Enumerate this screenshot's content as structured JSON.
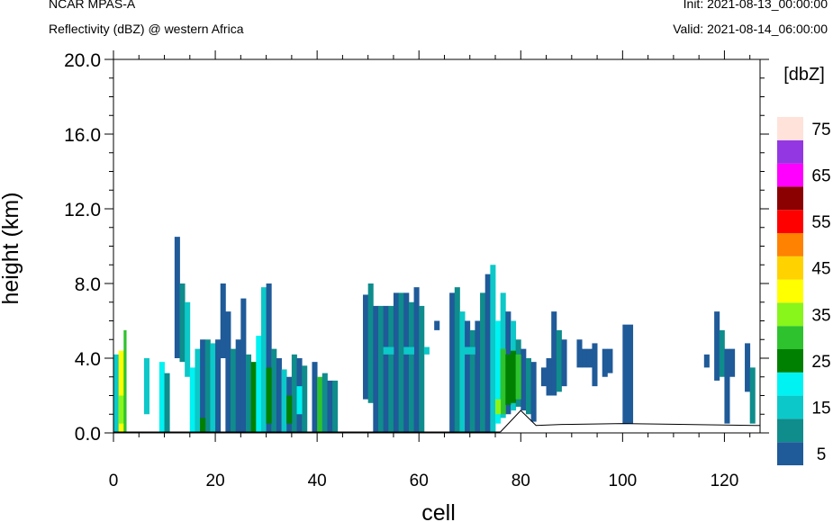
{
  "header": {
    "model": "NCAR MPAS-A",
    "field": "Reflectivity (dBZ) @ western Africa",
    "init": "Init: 2021-08-13_00:00:00",
    "valid": "Valid: 2021-08-14_06:00:00"
  },
  "chart_data": {
    "type": "heatmap",
    "title": "Reflectivity (dBZ) @ western Africa",
    "xlabel": "cell",
    "ylabel": "height (km)",
    "xlim": [
      0,
      127
    ],
    "ylim": [
      0,
      20
    ],
    "x_ticks": [
      "0",
      "20",
      "40",
      "60",
      "80",
      "100",
      "120"
    ],
    "y_ticks": [
      "0.0",
      "4.0",
      "8.0",
      "12.0",
      "16.0",
      "20.0"
    ],
    "colorbar": {
      "title": "[dbZ]",
      "labels": [
        "5",
        "15",
        "25",
        "35",
        "45",
        "55",
        "65",
        "75"
      ],
      "levels": [
        5,
        10,
        15,
        20,
        25,
        30,
        35,
        40,
        45,
        50,
        55,
        60,
        65,
        70,
        75
      ],
      "colors": [
        "#1f5a99",
        "#0f8c8c",
        "#0cc8c8",
        "#00f2f2",
        "#008000",
        "#2ec22e",
        "#88f51b",
        "#ffff00",
        "#ffd200",
        "#ff8200",
        "#ff0000",
        "#8b0000",
        "#ff00ff",
        "#9337e2",
        "#ffe2d9"
      ]
    },
    "columns": [
      {
        "x0": 0,
        "x1": 1,
        "bot": 0,
        "top": 4.2,
        "color": "#0cc8c8"
      },
      {
        "x0": 1,
        "x1": 2,
        "bot": 0,
        "top": 4.4,
        "color": "#ffff00"
      },
      {
        "x0": 1,
        "x1": 2,
        "bot": 0.5,
        "top": 2.0,
        "color": "#88f51b"
      },
      {
        "x0": 2,
        "x1": 2.5,
        "bot": 0,
        "top": 5.5,
        "color": "#2ec22e"
      },
      {
        "x0": 6,
        "x1": 7,
        "bot": 1.0,
        "top": 4.0,
        "color": "#0cc8c8"
      },
      {
        "x0": 9,
        "x1": 10,
        "bot": 0,
        "top": 3.8,
        "color": "#00f2f2"
      },
      {
        "x0": 10,
        "x1": 11,
        "bot": 0,
        "top": 3.2,
        "color": "#0f8c8c"
      },
      {
        "x0": 12,
        "x1": 13,
        "bot": 4.0,
        "top": 10.5,
        "color": "#1f5a99"
      },
      {
        "x0": 13,
        "x1": 14,
        "bot": 3.8,
        "top": 8.0,
        "color": "#0f8c8c"
      },
      {
        "x0": 14,
        "x1": 15,
        "bot": 3.0,
        "top": 7.0,
        "color": "#0cc8c8"
      },
      {
        "x0": 15,
        "x1": 16,
        "bot": 0,
        "top": 3.5,
        "color": "#00f2f2"
      },
      {
        "x0": 16,
        "x1": 17,
        "bot": 0,
        "top": 4.5,
        "color": "#0cc8c8"
      },
      {
        "x0": 17,
        "x1": 18,
        "bot": 0,
        "top": 5.0,
        "color": "#1f5a99"
      },
      {
        "x0": 18,
        "x1": 19,
        "bot": 0,
        "top": 5.0,
        "color": "#0f8c8c"
      },
      {
        "x0": 19,
        "x1": 20,
        "bot": 0,
        "top": 4.8,
        "color": "#0cc8c8"
      },
      {
        "x0": 20,
        "x1": 21,
        "bot": 0,
        "top": 5.0,
        "color": "#1f5a99"
      },
      {
        "x0": 21,
        "x1": 22,
        "bot": 4.0,
        "top": 8.0,
        "color": "#1f5a99"
      },
      {
        "x0": 22,
        "x1": 23,
        "bot": 0,
        "top": 6.5,
        "color": "#1f5a99"
      },
      {
        "x0": 23,
        "x1": 24,
        "bot": 0,
        "top": 4.5,
        "color": "#0f8c8c"
      },
      {
        "x0": 24,
        "x1": 25,
        "bot": 0,
        "top": 5.0,
        "color": "#1f5a99"
      },
      {
        "x0": 25,
        "x1": 26,
        "bot": 0,
        "top": 7.2,
        "color": "#1f5a99"
      },
      {
        "x0": 26,
        "x1": 27,
        "bot": 0,
        "top": 4.2,
        "color": "#0f8c8c"
      },
      {
        "x0": 27,
        "x1": 28,
        "bot": 0,
        "top": 3.8,
        "color": "#008000"
      },
      {
        "x0": 28,
        "x1": 29,
        "bot": 0,
        "top": 5.2,
        "color": "#00f2f2"
      },
      {
        "x0": 29,
        "x1": 30,
        "bot": 0,
        "top": 7.8,
        "color": "#0cc8c8"
      },
      {
        "x0": 30,
        "x1": 31,
        "bot": 0,
        "top": 8.0,
        "color": "#1f5a99"
      },
      {
        "x0": 31,
        "x1": 32,
        "bot": 0,
        "top": 4.5,
        "color": "#0f8c8c"
      },
      {
        "x0": 32,
        "x1": 33,
        "bot": 0,
        "top": 4.0,
        "color": "#1f5a99"
      },
      {
        "x0": 33,
        "x1": 34,
        "bot": 0,
        "top": 3.4,
        "color": "#0cc8c8"
      },
      {
        "x0": 34,
        "x1": 35,
        "bot": 0,
        "top": 3.0,
        "color": "#1f5a99"
      },
      {
        "x0": 35,
        "x1": 36,
        "bot": 0,
        "top": 4.2,
        "color": "#0f8c8c"
      },
      {
        "x0": 36,
        "x1": 37,
        "bot": 0,
        "top": 4.0,
        "color": "#1f5a99"
      },
      {
        "x0": 37,
        "x1": 38,
        "bot": 0,
        "top": 3.6,
        "color": "#0f8c8c"
      },
      {
        "x0": 39,
        "x1": 40,
        "bot": 0,
        "top": 3.8,
        "color": "#1f5a99"
      },
      {
        "x0": 40,
        "x1": 41,
        "bot": 0,
        "top": 3.0,
        "color": "#2ec22e"
      },
      {
        "x0": 41,
        "x1": 42,
        "bot": 0,
        "top": 3.2,
        "color": "#0f8c8c"
      },
      {
        "x0": 42,
        "x1": 43,
        "bot": 0,
        "top": 2.8,
        "color": "#1f5a99"
      },
      {
        "x0": 43,
        "x1": 44,
        "bot": 0,
        "top": 2.8,
        "color": "#0f8c8c"
      },
      {
        "x0": 49,
        "x1": 50,
        "bot": 1.8,
        "top": 7.4,
        "color": "#1f5a99"
      },
      {
        "x0": 50,
        "x1": 51,
        "bot": 1.6,
        "top": 8.0,
        "color": "#0f8c8c"
      },
      {
        "x0": 51,
        "x1": 52,
        "bot": 0,
        "top": 6.8,
        "color": "#1f5a99"
      },
      {
        "x0": 52,
        "x1": 53,
        "bot": 0,
        "top": 6.8,
        "color": "#0f8c8c"
      },
      {
        "x0": 53,
        "x1": 54,
        "bot": 0,
        "top": 6.8,
        "color": "#1f5a99"
      },
      {
        "x0": 54,
        "x1": 55,
        "bot": 0,
        "top": 6.8,
        "color": "#0f8c8c"
      },
      {
        "x0": 55,
        "x1": 56,
        "bot": 0,
        "top": 7.5,
        "color": "#1f5a99"
      },
      {
        "x0": 56,
        "x1": 57,
        "bot": 0,
        "top": 7.5,
        "color": "#0f8c8c"
      },
      {
        "x0": 57,
        "x1": 58,
        "bot": 0,
        "top": 7.5,
        "color": "#1f5a99"
      },
      {
        "x0": 58,
        "x1": 59,
        "bot": 0,
        "top": 7.0,
        "color": "#0f8c8c"
      },
      {
        "x0": 59,
        "x1": 60,
        "bot": 0,
        "top": 7.8,
        "color": "#1f5a99"
      },
      {
        "x0": 60,
        "x1": 61,
        "bot": 0,
        "top": 6.8,
        "color": "#0f8c8c"
      },
      {
        "x0": 63,
        "x1": 64,
        "bot": 5.5,
        "top": 6.0,
        "color": "#1f5a99"
      },
      {
        "x0": 66,
        "x1": 67,
        "bot": 0,
        "top": 7.5,
        "color": "#1f5a99"
      },
      {
        "x0": 67,
        "x1": 68,
        "bot": 0,
        "top": 7.8,
        "color": "#0f8c8c"
      },
      {
        "x0": 68,
        "x1": 69,
        "bot": 0,
        "top": 6.5,
        "color": "#0cc8c8"
      },
      {
        "x0": 69,
        "x1": 70,
        "bot": 0,
        "top": 6.0,
        "color": "#1f5a99"
      },
      {
        "x0": 70,
        "x1": 71,
        "bot": 0,
        "top": 5.5,
        "color": "#0f8c8c"
      },
      {
        "x0": 71,
        "x1": 72,
        "bot": 0,
        "top": 6.0,
        "color": "#1f5a99"
      },
      {
        "x0": 72,
        "x1": 73,
        "bot": 0,
        "top": 7.5,
        "color": "#0f8c8c"
      },
      {
        "x0": 73,
        "x1": 74,
        "bot": 0,
        "top": 8.5,
        "color": "#1f5a99"
      },
      {
        "x0": 74,
        "x1": 75,
        "bot": 0,
        "top": 9.0,
        "color": "#0cc8c8"
      },
      {
        "x0": 75,
        "x1": 76,
        "bot": 0.5,
        "top": 6.0,
        "color": "#00f2f2"
      },
      {
        "x0": 76,
        "x1": 77,
        "bot": 0.8,
        "top": 7.5,
        "color": "#0cc8c8"
      },
      {
        "x0": 77,
        "x1": 78,
        "bot": 1.0,
        "top": 6.5,
        "color": "#1f5a99"
      },
      {
        "x0": 78,
        "x1": 79,
        "bot": 1.2,
        "top": 6.0,
        "color": "#0cc8c8"
      },
      {
        "x0": 79,
        "x1": 80,
        "bot": 1.4,
        "top": 5.0,
        "color": "#0f8c8c"
      },
      {
        "x0": 80,
        "x1": 81,
        "bot": 1.2,
        "top": 4.5,
        "color": "#1f5a99"
      },
      {
        "x0": 81,
        "x1": 82,
        "bot": 1.0,
        "top": 4.0,
        "color": "#0f8c8c"
      },
      {
        "x0": 82,
        "x1": 83,
        "bot": 0.6,
        "top": 3.8,
        "color": "#1f5a99"
      },
      {
        "x0": 84,
        "x1": 85,
        "bot": 2.5,
        "top": 3.5,
        "color": "#1f5a99"
      },
      {
        "x0": 85,
        "x1": 86,
        "bot": 2.0,
        "top": 4.0,
        "color": "#1f5a99"
      },
      {
        "x0": 86,
        "x1": 87,
        "bot": 2.0,
        "top": 6.5,
        "color": "#1f5a99"
      },
      {
        "x0": 87,
        "x1": 88,
        "bot": 2.2,
        "top": 5.5,
        "color": "#0f8c8c"
      },
      {
        "x0": 88,
        "x1": 89,
        "bot": 2.5,
        "top": 5.0,
        "color": "#1f5a99"
      },
      {
        "x0": 91,
        "x1": 92,
        "bot": 3.5,
        "top": 5.0,
        "color": "#1f5a99"
      },
      {
        "x0": 92,
        "x1": 93,
        "bot": 3.5,
        "top": 4.5,
        "color": "#1f5a99"
      },
      {
        "x0": 93,
        "x1": 94,
        "bot": 3.5,
        "top": 4.5,
        "color": "#1f5a99"
      },
      {
        "x0": 94,
        "x1": 95,
        "bot": 2.5,
        "top": 4.8,
        "color": "#1f5a99"
      },
      {
        "x0": 96,
        "x1": 97,
        "bot": 3.0,
        "top": 4.5,
        "color": "#1f5a99"
      },
      {
        "x0": 97,
        "x1": 98,
        "bot": 3.2,
        "top": 4.5,
        "color": "#1f5a99"
      },
      {
        "x0": 100,
        "x1": 102,
        "bot": 0.5,
        "top": 5.8,
        "color": "#1f5a99"
      },
      {
        "x0": 116,
        "x1": 117,
        "bot": 3.5,
        "top": 4.2,
        "color": "#1f5a99"
      },
      {
        "x0": 118,
        "x1": 119,
        "bot": 2.8,
        "top": 6.5,
        "color": "#1f5a99"
      },
      {
        "x0": 119,
        "x1": 120,
        "bot": 3.0,
        "top": 5.5,
        "color": "#0f8c8c"
      },
      {
        "x0": 120,
        "x1": 121,
        "bot": 0.5,
        "top": 4.5,
        "color": "#1f5a99"
      },
      {
        "x0": 121,
        "x1": 122,
        "bot": 3.0,
        "top": 4.5,
        "color": "#1f5a99"
      },
      {
        "x0": 124,
        "x1": 125,
        "bot": 2.2,
        "top": 4.8,
        "color": "#1f5a99"
      },
      {
        "x0": 125,
        "x1": 126,
        "bot": 0.5,
        "top": 3.5,
        "color": "#0f8c8c"
      }
    ],
    "highlights": [
      {
        "x0": 17,
        "x1": 18,
        "bot": 0,
        "top": 0.8,
        "color": "#008000"
      },
      {
        "x0": 30,
        "x1": 31,
        "bot": 0.5,
        "top": 3.5,
        "color": "#008000"
      },
      {
        "x0": 34,
        "x1": 35,
        "bot": 0.5,
        "top": 2.0,
        "color": "#008000"
      },
      {
        "x0": 36,
        "x1": 37,
        "bot": 1.0,
        "top": 2.5,
        "color": "#00f2f2"
      },
      {
        "x0": 53,
        "x1": 55,
        "bot": 4.2,
        "top": 4.6,
        "color": "#0cc8c8"
      },
      {
        "x0": 57,
        "x1": 59,
        "bot": 4.2,
        "top": 4.6,
        "color": "#0cc8c8"
      },
      {
        "x0": 61,
        "x1": 62,
        "bot": 4.2,
        "top": 4.6,
        "color": "#0cc8c8"
      },
      {
        "x0": 68,
        "x1": 71,
        "bot": 4.2,
        "top": 4.6,
        "color": "#0cc8c8"
      },
      {
        "x0": 76,
        "x1": 77,
        "bot": 1.0,
        "top": 4.5,
        "color": "#2ec22e"
      },
      {
        "x0": 77,
        "x1": 78,
        "bot": 1.5,
        "top": 4.2,
        "color": "#008000"
      },
      {
        "x0": 78,
        "x1": 79,
        "bot": 1.6,
        "top": 4.4,
        "color": "#008000"
      },
      {
        "x0": 79,
        "x1": 80,
        "bot": 1.8,
        "top": 4.2,
        "color": "#2ec22e"
      },
      {
        "x0": 75,
        "x1": 76,
        "bot": 1.0,
        "top": 1.8,
        "color": "#88f51b"
      }
    ]
  }
}
